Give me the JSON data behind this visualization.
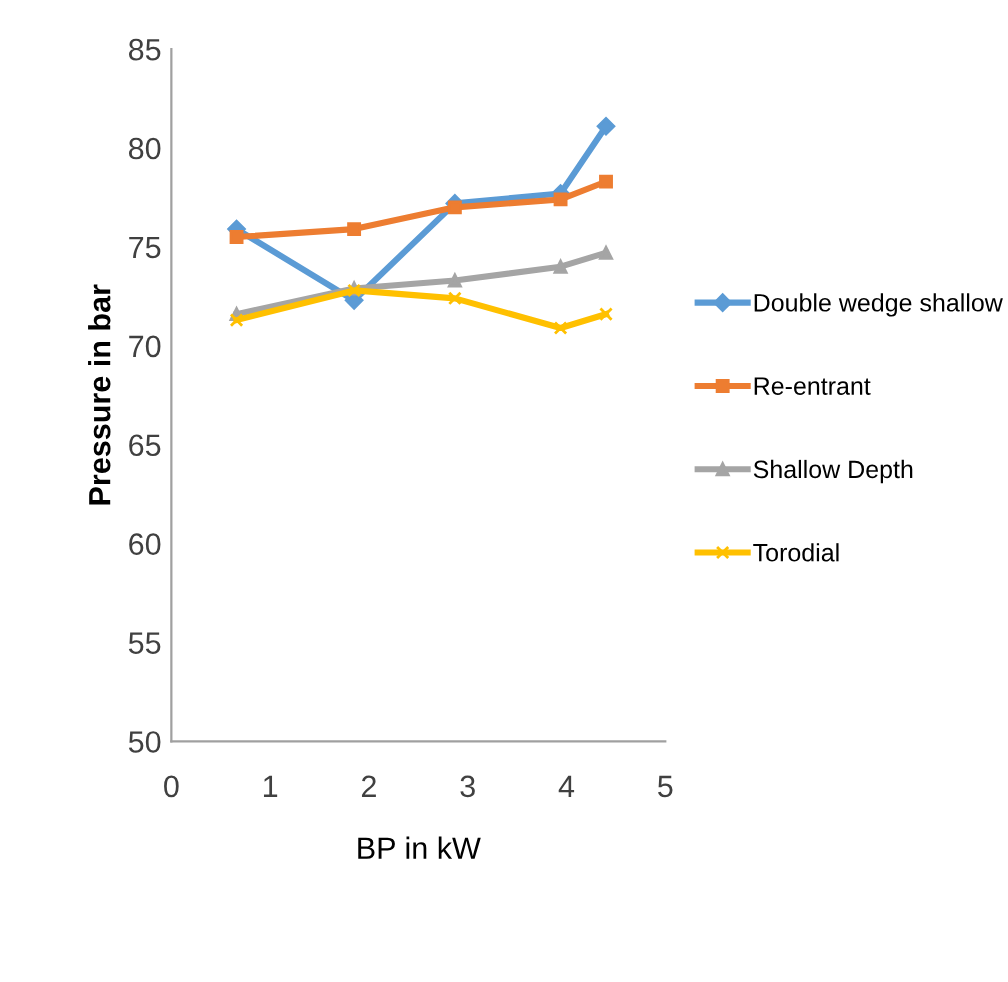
{
  "chart_data": {
    "type": "line",
    "xlabel": "BP in kW",
    "ylabel": "Pressure in bar",
    "xlim": [
      0,
      5
    ],
    "xticks": [
      0,
      1,
      2,
      3,
      4,
      5
    ],
    "ylim": [
      50,
      85
    ],
    "yticks": [
      50,
      55,
      60,
      65,
      70,
      75,
      80,
      85
    ],
    "grid": false,
    "legend": "right",
    "line_style": "solid",
    "x": [
      0.66,
      1.85,
      2.87,
      3.94,
      4.4
    ],
    "series": [
      {
        "name": "Double wedge shallow",
        "color": "#5b9bd5",
        "marker": "diamond",
        "values": [
          75.9,
          72.3,
          77.2,
          77.7,
          81.1
        ]
      },
      {
        "name": "Re-entrant",
        "color": "#ed7d31",
        "marker": "square",
        "values": [
          75.5,
          75.9,
          77.0,
          77.4,
          78.3
        ]
      },
      {
        "name": "Shallow Depth",
        "color": "#a5a5a5",
        "marker": "triangle",
        "values": [
          71.6,
          72.9,
          73.3,
          74.0,
          74.7
        ]
      },
      {
        "name": "Torodial",
        "color": "#ffc000",
        "marker": "cross",
        "values": [
          71.3,
          72.8,
          72.4,
          70.9,
          71.6
        ]
      }
    ]
  }
}
